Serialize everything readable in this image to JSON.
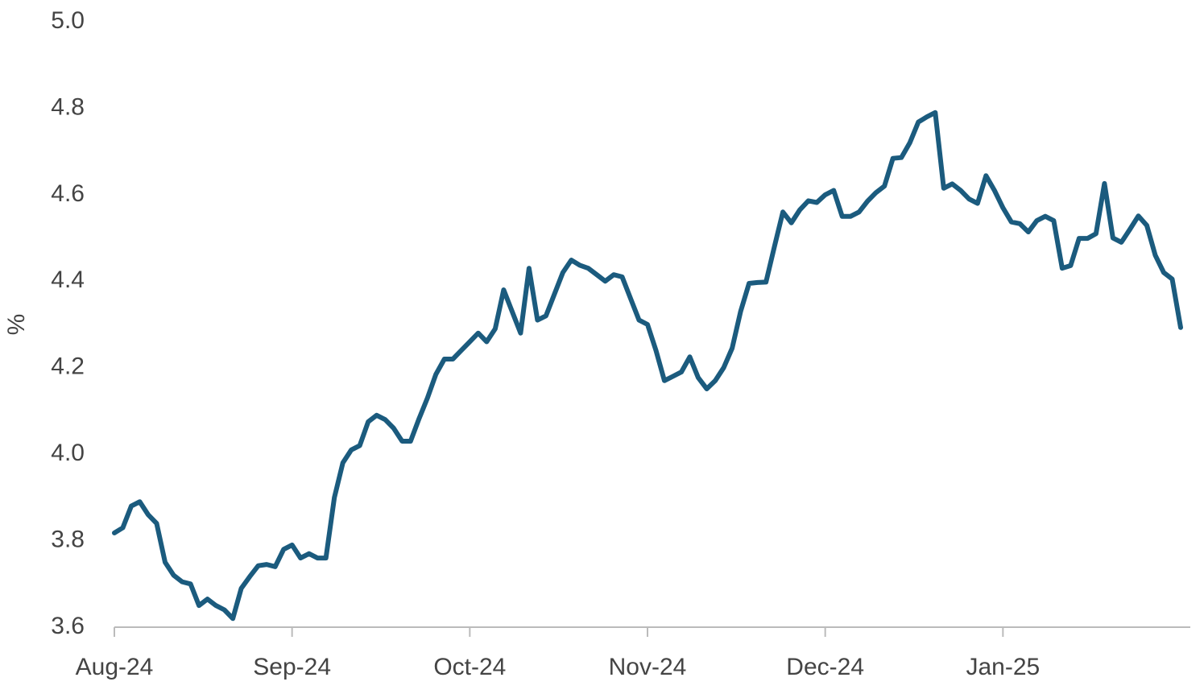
{
  "chart_data": {
    "type": "line",
    "y_label": "%",
    "categories": [
      "Aug-24",
      null,
      null,
      null,
      null,
      null,
      null,
      null,
      null,
      null,
      null,
      null,
      null,
      null,
      null,
      null,
      null,
      null,
      null,
      null,
      null,
      "Sep-24",
      null,
      null,
      null,
      null,
      null,
      null,
      null,
      null,
      null,
      null,
      null,
      null,
      null,
      null,
      null,
      null,
      null,
      null,
      null,
      null,
      "Oct-24",
      null,
      null,
      null,
      null,
      null,
      null,
      null,
      null,
      null,
      null,
      null,
      null,
      null,
      null,
      null,
      null,
      null,
      null,
      null,
      null,
      "Nov-24",
      null,
      null,
      null,
      null,
      null,
      null,
      null,
      null,
      null,
      null,
      null,
      null,
      null,
      null,
      null,
      null,
      null,
      null,
      null,
      null,
      "Dec-24",
      null,
      null,
      null,
      null,
      null,
      null,
      null,
      null,
      null,
      null,
      null,
      null,
      null,
      null,
      null,
      null,
      null,
      null,
      null,
      null,
      "Jan-25",
      null,
      null,
      null,
      null,
      null,
      null,
      null,
      null,
      null,
      null,
      null,
      null,
      null,
      null,
      null,
      null,
      null,
      null,
      null,
      null,
      null
    ],
    "values": [
      3.818,
      3.83,
      3.88,
      3.89,
      3.86,
      3.84,
      3.75,
      3.72,
      3.705,
      3.7,
      3.65,
      3.665,
      3.65,
      3.64,
      3.62,
      3.69,
      3.717,
      3.742,
      3.745,
      3.74,
      3.78,
      3.79,
      3.76,
      3.77,
      3.76,
      3.76,
      3.9,
      3.98,
      4.01,
      4.02,
      4.075,
      4.09,
      4.08,
      4.06,
      4.03,
      4.03,
      4.082,
      4.13,
      4.185,
      4.22,
      4.22,
      4.24,
      4.26,
      4.28,
      4.26,
      4.29,
      4.38,
      4.33,
      4.28,
      4.43,
      4.31,
      4.32,
      4.37,
      4.42,
      4.449,
      4.437,
      4.43,
      4.415,
      4.4,
      4.415,
      4.41,
      4.36,
      4.31,
      4.3,
      4.24,
      4.17,
      4.18,
      4.19,
      4.225,
      4.177,
      4.151,
      4.17,
      4.2,
      4.245,
      4.33,
      4.395,
      4.397,
      4.398,
      4.48,
      4.56,
      4.535,
      4.565,
      4.586,
      4.582,
      4.6,
      4.61,
      4.55,
      4.55,
      4.56,
      4.585,
      4.605,
      4.62,
      4.684,
      4.686,
      4.72,
      4.768,
      4.78,
      4.79,
      4.615,
      4.625,
      4.61,
      4.59,
      4.58,
      4.644,
      4.61,
      4.57,
      4.537,
      4.533,
      4.514,
      4.54,
      4.55,
      4.54,
      4.43,
      4.436,
      4.499,
      4.499,
      4.51,
      4.626,
      4.5,
      4.49,
      4.52,
      4.551,
      4.529,
      4.46,
      4.42,
      4.405,
      4.293
    ],
    "color": "#1b5b7e",
    "ylim": [
      3.6,
      5.0
    ],
    "yticks": [
      3.6,
      3.8,
      {
        "value": 4.0,
        "label": "4.0"
      },
      4.2,
      4.4,
      4.6,
      4.8,
      {
        "value": 5.0,
        "label": "5.0"
      }
    ],
    "grid": false
  }
}
